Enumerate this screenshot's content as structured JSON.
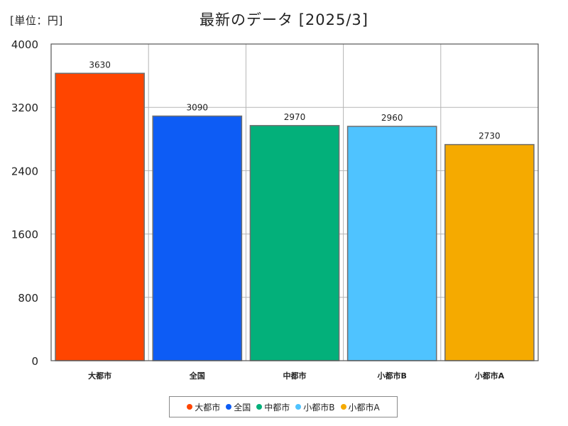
{
  "header": {
    "unit": "[単位：円]",
    "title": "最新のデータ [2025/3]"
  },
  "chart_data": {
    "type": "bar",
    "categories": [
      "大都市",
      "全国",
      "中都市",
      "小都市B",
      "小都市A"
    ],
    "values": [
      3630,
      3090,
      2970,
      2960,
      2730
    ],
    "colors": [
      "#ff4500",
      "#0d5cf5",
      "#03b07a",
      "#4fc3ff",
      "#f5aa00"
    ],
    "ylim": [
      0,
      4000
    ],
    "yticks": [
      0,
      800,
      1600,
      2400,
      3200,
      4000
    ],
    "grid": true,
    "legend_position": "bottom",
    "data_labels": true
  }
}
